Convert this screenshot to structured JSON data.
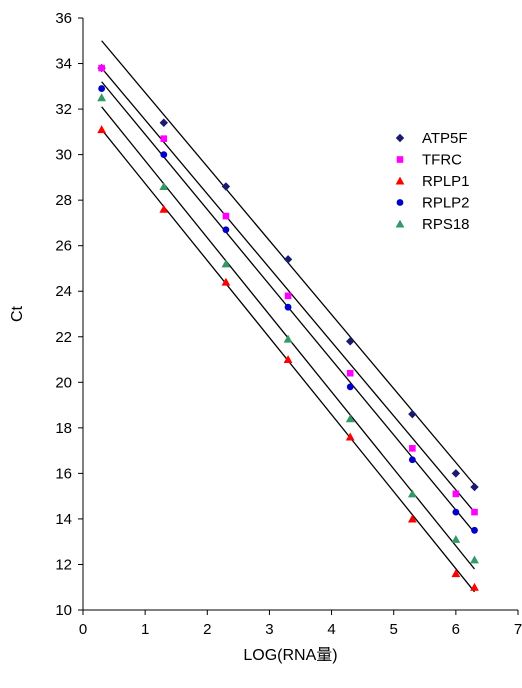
{
  "chart_data": {
    "type": "scatter",
    "xlabel": "LOG(RNA量)",
    "ylabel": "Ct",
    "xlim": [
      0,
      7
    ],
    "ylim": [
      10,
      36
    ],
    "xticks": [
      0,
      1,
      2,
      3,
      4,
      5,
      6,
      7
    ],
    "yticks": [
      10,
      12,
      14,
      16,
      18,
      20,
      22,
      24,
      26,
      28,
      30,
      32,
      34,
      36
    ],
    "grid": false,
    "legend_position": "top-right",
    "series": [
      {
        "name": "ATP5F",
        "marker": "diamond",
        "color": "#1a1a6e",
        "x": [
          0.3,
          1.3,
          2.3,
          3.3,
          4.3,
          5.3,
          6.0,
          6.3
        ],
        "y": [
          33.8,
          31.4,
          28.6,
          25.4,
          21.8,
          18.6,
          16.0,
          15.4
        ],
        "fit": {
          "x": [
            0.3,
            6.3
          ],
          "y": [
            35.0,
            15.5
          ]
        }
      },
      {
        "name": "TFRC",
        "marker": "square",
        "color": "#ff00ff",
        "x": [
          0.3,
          1.3,
          2.3,
          3.3,
          4.3,
          5.3,
          6.0,
          6.3
        ],
        "y": [
          33.8,
          30.7,
          27.3,
          23.8,
          20.4,
          17.1,
          15.1,
          14.3
        ],
        "fit": {
          "x": [
            0.3,
            6.3
          ],
          "y": [
            33.8,
            14.3
          ]
        }
      },
      {
        "name": "RPLP1",
        "marker": "triangle",
        "color": "#ff0000",
        "x": [
          0.3,
          1.3,
          2.3,
          3.3,
          4.3,
          5.3,
          6.0,
          6.3
        ],
        "y": [
          31.1,
          27.6,
          24.4,
          21.0,
          17.6,
          14.0,
          11.6,
          11.0
        ],
        "fit": {
          "x": [
            0.3,
            6.3
          ],
          "y": [
            31.1,
            10.8
          ]
        }
      },
      {
        "name": "RPLP2",
        "marker": "circle",
        "color": "#0000cc",
        "x": [
          0.3,
          1.3,
          2.3,
          3.3,
          4.3,
          5.3,
          6.0,
          6.3
        ],
        "y": [
          32.9,
          30.0,
          26.7,
          23.3,
          19.8,
          16.6,
          14.3,
          13.5
        ],
        "fit": {
          "x": [
            0.3,
            6.3
          ],
          "y": [
            33.2,
            13.4
          ]
        }
      },
      {
        "name": "RPS18",
        "marker": "triangle",
        "color": "#339966",
        "x": [
          0.3,
          1.3,
          2.3,
          3.3,
          4.3,
          5.3,
          6.0,
          6.3
        ],
        "y": [
          32.5,
          28.6,
          25.2,
          21.9,
          18.4,
          15.1,
          13.1,
          12.2
        ],
        "fit": {
          "x": [
            0.3,
            6.3
          ],
          "y": [
            32.1,
            11.8
          ]
        }
      }
    ]
  }
}
